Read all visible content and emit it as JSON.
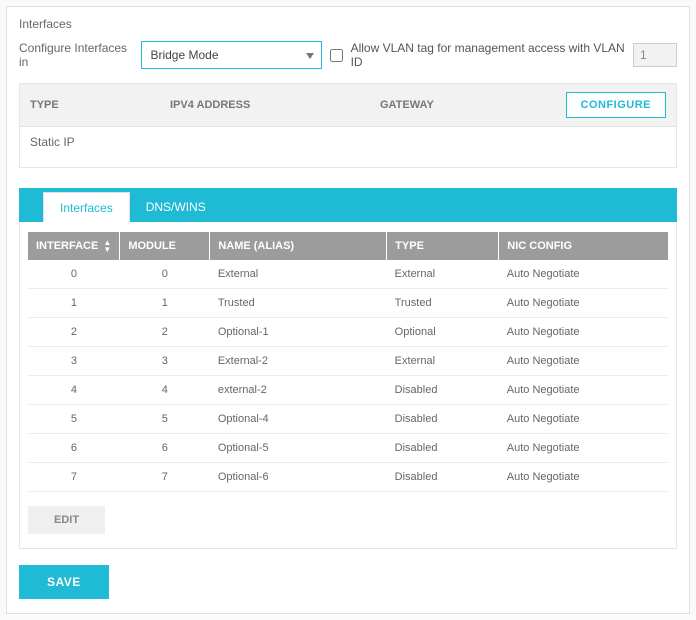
{
  "colors": {
    "accent": "#1fbad6",
    "header_bg": "#9c9c9c",
    "panel_border": "#e0e0e0",
    "text": "#555"
  },
  "title": "Interfaces",
  "config": {
    "label": "Configure Interfaces in",
    "mode_selected": "Bridge Mode",
    "mode_options": [
      "Bridge Mode"
    ],
    "vlan_checkbox_label": "Allow VLAN tag for management access with VLAN ID",
    "vlan_checked": false,
    "vlan_id": "1"
  },
  "static_section": {
    "headers": {
      "type": "TYPE",
      "ipv4": "IPV4 ADDRESS",
      "gateway": "GATEWAY"
    },
    "configure_label": "CONFIGURE",
    "row": {
      "type": "Static IP",
      "ipv4": "",
      "gateway": ""
    }
  },
  "tabs": {
    "active": "Interfaces",
    "items": [
      "Interfaces",
      "DNS/WINS"
    ]
  },
  "grid": {
    "columns": {
      "interface": "INTERFACE",
      "module": "MODULE",
      "name_alias": "NAME (ALIAS)",
      "type": "TYPE",
      "nic_config": "NIC CONFIG"
    },
    "rows": [
      {
        "interface": "0",
        "module": "0",
        "name_alias": "External",
        "type": "External",
        "nic_config": "Auto Negotiate"
      },
      {
        "interface": "1",
        "module": "1",
        "name_alias": "Trusted",
        "type": "Trusted",
        "nic_config": "Auto Negotiate"
      },
      {
        "interface": "2",
        "module": "2",
        "name_alias": "Optional-1",
        "type": "Optional",
        "nic_config": "Auto Negotiate"
      },
      {
        "interface": "3",
        "module": "3",
        "name_alias": "External-2",
        "type": "External",
        "nic_config": "Auto Negotiate"
      },
      {
        "interface": "4",
        "module": "4",
        "name_alias": "external-2",
        "type": "Disabled",
        "nic_config": "Auto Negotiate"
      },
      {
        "interface": "5",
        "module": "5",
        "name_alias": "Optional-4",
        "type": "Disabled",
        "nic_config": "Auto Negotiate"
      },
      {
        "interface": "6",
        "module": "6",
        "name_alias": "Optional-5",
        "type": "Disabled",
        "nic_config": "Auto Negotiate"
      },
      {
        "interface": "7",
        "module": "7",
        "name_alias": "Optional-6",
        "type": "Disabled",
        "nic_config": "Auto Negotiate"
      }
    ]
  },
  "buttons": {
    "edit": "EDIT",
    "save": "SAVE"
  }
}
